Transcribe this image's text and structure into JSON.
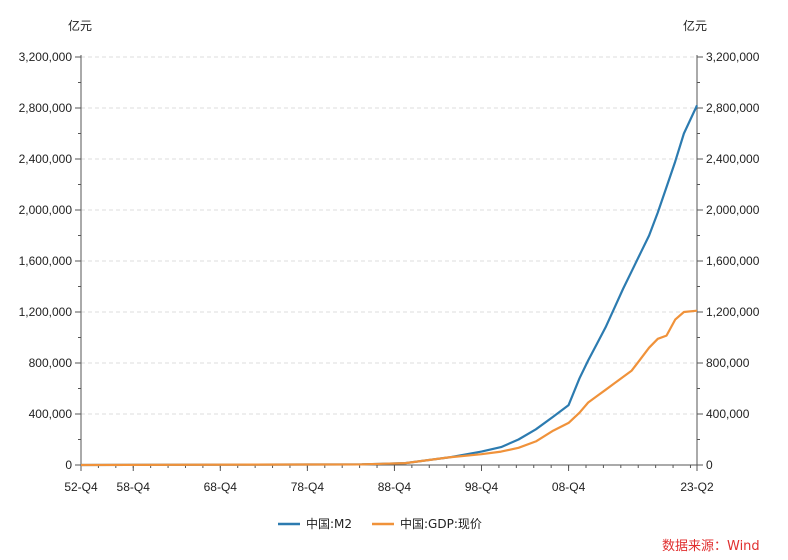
{
  "chart_data": {
    "type": "line",
    "unit_left": "亿元",
    "unit_right": "亿元",
    "x_tick_labels": [
      "52-Q4",
      "58-Q4",
      "68-Q4",
      "78-Q4",
      "88-Q4",
      "98-Q4",
      "08-Q4",
      "23-Q2"
    ],
    "y_ticks": [
      0,
      400000,
      800000,
      1200000,
      1600000,
      2000000,
      2400000,
      2800000,
      3200000
    ],
    "y_tick_labels": [
      "0",
      "400,000",
      "800,000",
      "1,200,000",
      "1,600,000",
      "2,000,000",
      "2,400,000",
      "2,800,000",
      "3,200,000"
    ],
    "ylim": [
      0,
      3200000
    ],
    "xlim": [
      1952.75,
      2023.5
    ],
    "grid": "horizontal dashed",
    "legend_position": "bottom-center",
    "series": [
      {
        "name": "中国:M2",
        "color": "#2c7bb0",
        "points": [
          [
            1952.75,
            0
          ],
          [
            1985,
            5000
          ],
          [
            1990,
            15000
          ],
          [
            1995,
            60000
          ],
          [
            1998.75,
            105000
          ],
          [
            2001,
            140000
          ],
          [
            2003,
            200000
          ],
          [
            2005,
            280000
          ],
          [
            2007,
            380000
          ],
          [
            2008.75,
            470000
          ],
          [
            2010,
            680000
          ],
          [
            2011,
            820000
          ],
          [
            2012,
            950000
          ],
          [
            2013,
            1080000
          ],
          [
            2014,
            1230000
          ],
          [
            2015,
            1380000
          ],
          [
            2016,
            1520000
          ],
          [
            2017,
            1660000
          ],
          [
            2018,
            1800000
          ],
          [
            2019,
            1980000
          ],
          [
            2020,
            2180000
          ],
          [
            2021,
            2380000
          ],
          [
            2022,
            2600000
          ],
          [
            2023.5,
            2820000
          ]
        ]
      },
      {
        "name": "中国:GDP:现价",
        "color": "#f0923a",
        "points": [
          [
            1952.75,
            0
          ],
          [
            1985,
            5000
          ],
          [
            1990,
            15000
          ],
          [
            1995,
            60000
          ],
          [
            1998.75,
            85000
          ],
          [
            2001,
            105000
          ],
          [
            2003,
            135000
          ],
          [
            2005,
            185000
          ],
          [
            2007,
            270000
          ],
          [
            2008.75,
            330000
          ],
          [
            2010,
            410000
          ],
          [
            2011,
            490000
          ],
          [
            2012,
            540000
          ],
          [
            2013,
            590000
          ],
          [
            2014,
            640000
          ],
          [
            2015,
            690000
          ],
          [
            2016,
            740000
          ],
          [
            2017,
            830000
          ],
          [
            2018,
            920000
          ],
          [
            2019,
            990000
          ],
          [
            2020,
            1015000
          ],
          [
            2021,
            1140000
          ],
          [
            2022,
            1200000
          ],
          [
            2023.5,
            1210000
          ]
        ]
      }
    ]
  },
  "source": "数据来源：Wind"
}
